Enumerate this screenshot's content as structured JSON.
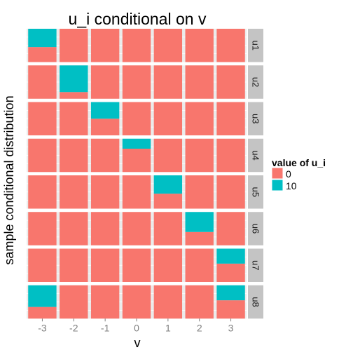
{
  "chart_data": {
    "type": "bar",
    "subtype": "faceted stacked proportion bars",
    "title": "u_i conditional on v",
    "xlabel": "v",
    "ylabel": "sample conditional distribution",
    "categories": [
      "-3",
      "-2",
      "-1",
      "0",
      "1",
      "2",
      "3"
    ],
    "facets": [
      "u1",
      "u2",
      "u3",
      "u4",
      "u5",
      "u6",
      "u7",
      "u8"
    ],
    "ylim": [
      0,
      1
    ],
    "legend": {
      "title": "value of u_i",
      "position": "right",
      "entries": [
        {
          "label": "0",
          "color": "#F8766D"
        },
        {
          "label": "10",
          "color": "#00BFC4"
        }
      ]
    },
    "series": [
      {
        "name": "10",
        "color": "#00BFC4",
        "facet_values": [
          [
            0.55,
            0,
            0,
            0,
            0,
            0,
            0
          ],
          [
            0,
            0.8,
            0,
            0,
            0,
            0,
            0
          ],
          [
            0,
            0,
            0.5,
            0,
            0,
            0,
            0
          ],
          [
            0,
            0,
            0,
            0.3,
            0,
            0,
            0
          ],
          [
            0,
            0,
            0,
            0,
            0.55,
            0,
            0
          ],
          [
            0,
            0,
            0,
            0,
            0,
            0.6,
            0
          ],
          [
            0,
            0,
            0,
            0,
            0,
            0,
            0.45
          ],
          [
            0.65,
            0,
            0,
            0,
            0,
            0,
            0.45
          ]
        ]
      },
      {
        "name": "0",
        "color": "#F8766D",
        "facet_values": [
          [
            0.45,
            1,
            1,
            1,
            1,
            1,
            1
          ],
          [
            1,
            0.2,
            1,
            1,
            1,
            1,
            1
          ],
          [
            1,
            1,
            0.5,
            1,
            1,
            1,
            1
          ],
          [
            1,
            1,
            1,
            0.7,
            1,
            1,
            1
          ],
          [
            1,
            1,
            1,
            1,
            0.45,
            1,
            1
          ],
          [
            1,
            1,
            1,
            1,
            1,
            0.4,
            1
          ],
          [
            1,
            1,
            1,
            1,
            1,
            1,
            0.55
          ],
          [
            0.35,
            1,
            1,
            1,
            1,
            1,
            0.55
          ]
        ]
      }
    ],
    "colors": {
      "panel_background": "#EBEBEB",
      "grid": "#FFFFFF",
      "strip_background": "#C4C4C4",
      "axis_text": "#7F7F7F"
    },
    "grid": true
  }
}
